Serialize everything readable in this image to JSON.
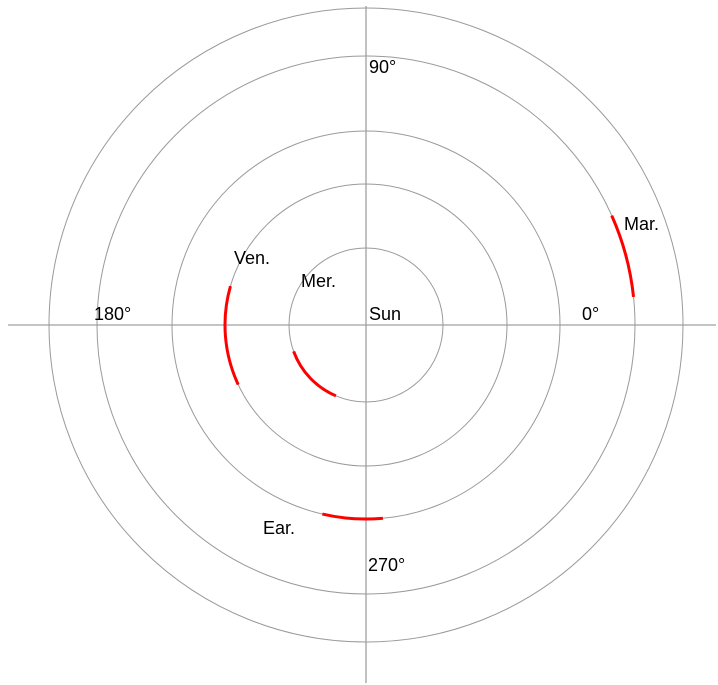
{
  "colors": {
    "background": "#ffffff",
    "axis": "#a0a0a0",
    "orbit": "#9a9a9a",
    "highlight": "#ff0000",
    "text": "#000000"
  },
  "center_label": "Sun",
  "angle_labels": {
    "deg0": "0°",
    "deg90": "90°",
    "deg180": "180°",
    "deg270": "270°"
  },
  "orbits": [
    {
      "name": "Mer.",
      "arc_start_deg": 200,
      "arc_end_deg": 247
    },
    {
      "name": "Ven.",
      "arc_start_deg": 164,
      "arc_end_deg": 205
    },
    {
      "name": "Ear.",
      "arc_start_deg": 257,
      "arc_end_deg": 275
    },
    {
      "name": "Mar.",
      "arc_start_deg": 6,
      "arc_end_deg": 24
    }
  ]
}
